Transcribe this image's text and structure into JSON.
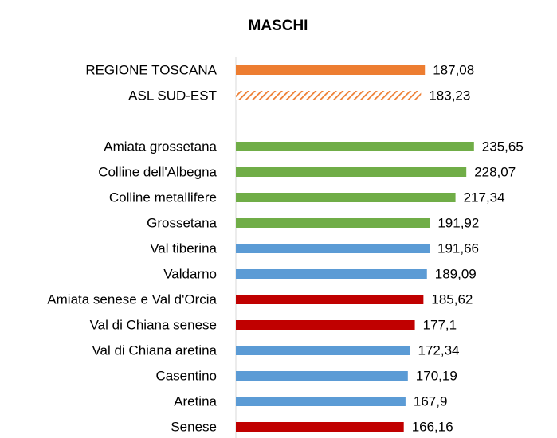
{
  "chart_data": {
    "type": "hbar",
    "title": "MASCHI",
    "categories": [
      "REGIONE TOSCANA",
      "ASL SUD-EST",
      null,
      "Amiata grossetana",
      "Colline dell'Albegna",
      "Colline metallifere",
      "Grossetana",
      "Val tiberina",
      "Valdarno",
      "Amiata senese e Val d'Orcia",
      "Val di Chiana senese",
      "Val di Chiana aretina",
      "Casentino",
      "Aretina",
      "Senese"
    ],
    "values": [
      187.08,
      183.23,
      null,
      235.65,
      228.07,
      217.34,
      191.92,
      191.66,
      189.09,
      185.62,
      177.1,
      172.34,
      170.19,
      167.9,
      166.16
    ],
    "value_labels": [
      "187,08",
      "183,23",
      null,
      "235,65",
      "228,07",
      "217,34",
      "191,92",
      "191,66",
      "189,09",
      "185,62",
      "177,1",
      "172,34",
      "170,19",
      "167,9",
      "166,16"
    ],
    "colors": [
      "#ed7d31",
      "#ed7d31",
      null,
      "#70ad47",
      "#70ad47",
      "#70ad47",
      "#70ad47",
      "#5b9bd5",
      "#5b9bd5",
      "#c00000",
      "#c00000",
      "#5b9bd5",
      "#5b9bd5",
      "#5b9bd5",
      "#c00000"
    ],
    "hatched": [
      false,
      true,
      false,
      false,
      false,
      false,
      false,
      false,
      false,
      false,
      false,
      false,
      false,
      false,
      false
    ],
    "xlim": [
      0,
      250
    ]
  }
}
